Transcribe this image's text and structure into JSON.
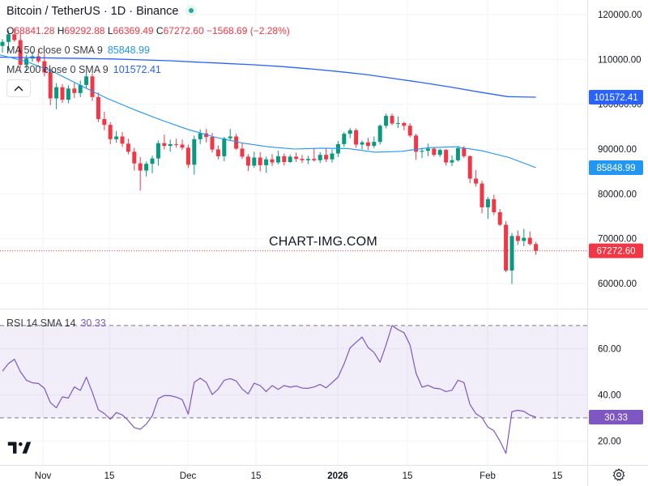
{
  "header": {
    "title": "Bitcoin / TetherUS · 1D · Binance",
    "ohlc": {
      "o_label": "O",
      "o": "68841.28",
      "h_label": "H",
      "h": "69292.88",
      "l_label": "L",
      "l": "66369.49",
      "c_label": "C",
      "c": "67272.60",
      "change": "−1568.69 (−2.28%)"
    }
  },
  "indicators": {
    "ma50": {
      "label": "MA 50 close 0 SMA 9",
      "value": "85848.99",
      "color": "#2196f3"
    },
    "ma200": {
      "label": "MA 200 close 0 SMA 9",
      "value": "101572.41",
      "color": "#2962ff"
    },
    "rsi": {
      "label": "RSI 14 SMA 14",
      "value": "30.33",
      "color": "#7e57c2"
    }
  },
  "watermark": "CHART-IMG.COM",
  "colors": {
    "up": "#089981",
    "down": "#f23645",
    "grid": "#f0f3fa",
    "axis_text": "#131722"
  },
  "chart_data": [
    {
      "type": "candlestick",
      "title": "Bitcoin / TetherUS · 1D · Binance",
      "x_tick_labels": [
        "Nov",
        "15",
        "Dec",
        "15",
        "2026",
        "15",
        "Feb",
        "15"
      ],
      "y_tick_labels": [
        "120000.00",
        "110000.00",
        "100000.00",
        "90000.00",
        "80000.00",
        "70000.00",
        "60000.00"
      ],
      "ylim": [
        57800,
        122500
      ],
      "price_labels": {
        "ma200": "101572.41",
        "ma50": "85848.99",
        "last": "67272.60"
      },
      "candles": [
        [
          113000,
          114500,
          111500,
          113900
        ],
        [
          113900,
          116500,
          111800,
          115600
        ],
        [
          115600,
          117000,
          113900,
          114300
        ],
        [
          114300,
          115800,
          108000,
          108800
        ],
        [
          108800,
          111000,
          107300,
          110200
        ],
        [
          110200,
          111800,
          109500,
          110700
        ],
        [
          110700,
          112300,
          109200,
          109600
        ],
        [
          109600,
          111300,
          106200,
          107100
        ],
        [
          107100,
          107900,
          99800,
          101300
        ],
        [
          101300,
          104700,
          98900,
          103800
        ],
        [
          103800,
          104500,
          100300,
          101000
        ],
        [
          101000,
          104200,
          100200,
          103500
        ],
        [
          103500,
          104800,
          101400,
          102500
        ],
        [
          102500,
          105300,
          101600,
          104300
        ],
        [
          104300,
          107100,
          103500,
          106200
        ],
        [
          106200,
          106900,
          100700,
          101600
        ],
        [
          101600,
          102600,
          96000,
          96700
        ],
        [
          96700,
          98300,
          94200,
          95400
        ],
        [
          95400,
          96000,
          91100,
          92200
        ],
        [
          92200,
          94000,
          91400,
          92800
        ],
        [
          92800,
          93800,
          90500,
          91200
        ],
        [
          91200,
          92300,
          88800,
          89400
        ],
        [
          89400,
          90300,
          85200,
          86800
        ],
        [
          86800,
          88200,
          80700,
          85200
        ],
        [
          85200,
          87200,
          83900,
          86700
        ],
        [
          86700,
          88500,
          84600,
          87900
        ],
        [
          87900,
          91900,
          86300,
          91300
        ],
        [
          91300,
          93200,
          89900,
          90700
        ],
        [
          90700,
          92100,
          89400,
          91100
        ],
        [
          91100,
          92300,
          90300,
          91000
        ],
        [
          91000,
          92100,
          89800,
          90300
        ],
        [
          90300,
          91000,
          85800,
          86500
        ],
        [
          86500,
          93000,
          84300,
          92200
        ],
        [
          92200,
          94400,
          91100,
          93500
        ],
        [
          93500,
          94500,
          91500,
          92700
        ],
        [
          92700,
          93600,
          89200,
          89900
        ],
        [
          89900,
          90800,
          87700,
          88400
        ],
        [
          88400,
          92700,
          87300,
          92400
        ],
        [
          92400,
          94500,
          91900,
          92800
        ],
        [
          92800,
          93400,
          89800,
          90100
        ],
        [
          90100,
          91400,
          87800,
          88300
        ],
        [
          88300,
          88900,
          85100,
          86300
        ],
        [
          86300,
          89400,
          85800,
          88100
        ],
        [
          88100,
          89300,
          85000,
          86400
        ],
        [
          86400,
          88300,
          84700,
          87700
        ],
        [
          87700,
          88900,
          86200,
          87000
        ],
        [
          87000,
          89600,
          86600,
          88400
        ],
        [
          88400,
          89000,
          86300,
          87100
        ],
        [
          87100,
          88800,
          86900,
          88300
        ],
        [
          88300,
          89200,
          87100,
          87800
        ],
        [
          87800,
          88700,
          86900,
          87500
        ],
        [
          87500,
          88500,
          86600,
          87800
        ],
        [
          87800,
          90200,
          87200,
          87500
        ],
        [
          87500,
          89300,
          86900,
          88700
        ],
        [
          88700,
          90300,
          87100,
          87700
        ],
        [
          87700,
          89900,
          87000,
          89000
        ],
        [
          89000,
          91800,
          88200,
          91100
        ],
        [
          91100,
          93800,
          90500,
          93400
        ],
        [
          93400,
          94700,
          92400,
          94200
        ],
        [
          94200,
          94600,
          90300,
          91000
        ],
        [
          91000,
          91900,
          89900,
          91500
        ],
        [
          91500,
          92500,
          89800,
          90700
        ],
        [
          90700,
          92800,
          90200,
          91600
        ],
        [
          91600,
          95500,
          91000,
          95200
        ],
        [
          95200,
          97900,
          94600,
          97400
        ],
        [
          97400,
          97900,
          95300,
          95700
        ],
        [
          95700,
          97300,
          94700,
          95800
        ],
        [
          95800,
          96100,
          94200,
          95200
        ],
        [
          95200,
          95800,
          92600,
          93000
        ],
        [
          93000,
          93400,
          87600,
          89400
        ],
        [
          89400,
          90300,
          88000,
          89600
        ],
        [
          89600,
          91200,
          88400,
          90100
        ],
        [
          90100,
          90500,
          88300,
          88700
        ],
        [
          88700,
          90100,
          88200,
          89800
        ],
        [
          89800,
          90000,
          86300,
          87000
        ],
        [
          87000,
          88600,
          86200,
          87500
        ],
        [
          87500,
          90700,
          87200,
          90200
        ],
        [
          90200,
          90700,
          88000,
          88400
        ],
        [
          88400,
          88600,
          82400,
          83400
        ],
        [
          83400,
          85300,
          81600,
          82300
        ],
        [
          82300,
          82900,
          75700,
          77000
        ],
        [
          77000,
          79300,
          74400,
          78800
        ],
        [
          78800,
          79800,
          75300,
          75900
        ],
        [
          75900,
          76600,
          72800,
          73100
        ],
        [
          73100,
          73900,
          62500,
          62900
        ],
        [
          62900,
          71300,
          59900,
          70600
        ],
        [
          70600,
          71800,
          68600,
          69500
        ],
        [
          69500,
          72200,
          68300,
          70200
        ],
        [
          70200,
          71600,
          68500,
          68800
        ],
        [
          68800,
          69300,
          66400,
          67300
        ]
      ],
      "ma200_series": [
        110500,
        110400,
        110300,
        110200,
        110100,
        109900,
        109700,
        109400,
        109100,
        108800,
        108400,
        107900,
        107300,
        106600,
        105700,
        104800,
        103800,
        102700,
        101700,
        101572.41
      ],
      "ma50_series": [
        111000,
        109500,
        107200,
        104200,
        101300,
        98800,
        96500,
        94400,
        92700,
        91400,
        90500,
        90000,
        90200,
        90100,
        89300,
        89500,
        90300,
        90500,
        89600,
        88100,
        85848.99
      ]
    },
    {
      "type": "line",
      "title": "RSI 14 SMA 14",
      "y_tick_labels": [
        "60.00",
        "40.00",
        "20.00"
      ],
      "ylim": [
        12.5,
        72
      ],
      "band": [
        30,
        70
      ],
      "last_label": "30.33",
      "values": [
        50.2,
        53.5,
        55.4,
        50.0,
        46.3,
        45.2,
        44.9,
        42.8,
        36.6,
        34.4,
        39.1,
        38.6,
        43.4,
        41.9,
        47.6,
        41.1,
        33.5,
        31.9,
        29.4,
        32.3,
        31.3,
        28.8,
        25.8,
        25.1,
        27.3,
        30.9,
        38.3,
        39.7,
        39.6,
        39.0,
        37.9,
        31.6,
        45.4,
        47.2,
        45.4,
        40.1,
        42.5,
        46.3,
        47.0,
        46.0,
        42.5,
        40.4,
        45.0,
        44.0,
        41.4,
        44.0,
        42.3,
        44.0,
        43.3,
        43.8,
        42.9,
        42.8,
        43.4,
        44.5,
        43.0,
        45.3,
        47.7,
        53.4,
        60.3,
        62.7,
        65.0,
        60.5,
        58.3,
        54.1,
        61.6,
        70.0,
        68.2,
        66.9,
        61.6,
        49.4,
        43.3,
        44.1,
        42.9,
        42.6,
        41.4,
        42.0,
        46.3,
        45.3,
        35.8,
        31.8,
        30.1,
        26.0,
        24.4,
        20.0,
        14.6,
        32.7,
        33.3,
        32.8,
        31.2,
        30.33
      ]
    }
  ]
}
